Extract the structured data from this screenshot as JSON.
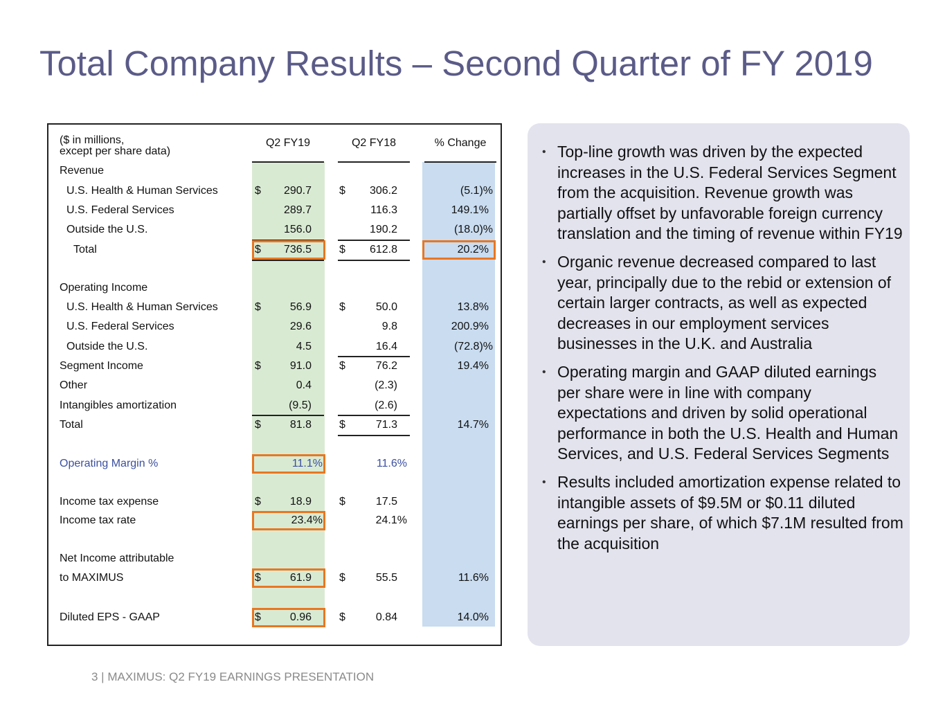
{
  "title": "Total Company Results – Second Quarter of FY 2019",
  "table": {
    "header": {
      "label_lines": [
        "($ in millions,",
        "except per share data)"
      ],
      "columns": [
        "Q2 FY19",
        "Q2 FY18",
        "% Change"
      ]
    },
    "rows": [
      {
        "label": "Revenue"
      },
      {
        "label": "U.S. Health & Human Services",
        "cur_sign": "$",
        "cur": "290.7",
        "prior_sign": "$",
        "prior": "306.2",
        "change": "(5.1)%"
      },
      {
        "label": "U.S. Federal Services",
        "cur": "289.7",
        "prior": "116.3",
        "change": "149.1%"
      },
      {
        "label": "Outside the U.S.",
        "cur": "156.0",
        "prior": "190.2",
        "change": "(18.0)%"
      },
      {
        "label": "Total",
        "cur_sign": "$",
        "cur": "736.5",
        "prior_sign": "$",
        "prior": "612.8",
        "change": "20.2%"
      },
      {
        "label": "Operating Income"
      },
      {
        "label": "U.S. Health & Human Services",
        "cur_sign": "$",
        "cur": "56.9",
        "prior_sign": "$",
        "prior": "50.0",
        "change": "13.8%"
      },
      {
        "label": "U.S. Federal Services",
        "cur": "29.6",
        "prior": "9.8",
        "change": "200.9%"
      },
      {
        "label": "Outside the U.S.",
        "cur": "4.5",
        "prior": "16.4",
        "change": "(72.8)%"
      },
      {
        "label": "Segment Income",
        "cur_sign": "$",
        "cur": "91.0",
        "prior_sign": "$",
        "prior": "76.2",
        "change": "19.4%"
      },
      {
        "label": "Other",
        "cur": "0.4",
        "prior": "(2.3)"
      },
      {
        "label": "Intangibles amortization",
        "cur": "(9.5)",
        "prior": "(2.6)"
      },
      {
        "label": "Total",
        "cur_sign": "$",
        "cur": "81.8",
        "prior_sign": "$",
        "prior": "71.3",
        "change": "14.7%"
      },
      {
        "label": "Operating Margin %",
        "cur": "11.1%",
        "prior": "11.6%"
      },
      {
        "label": "Income tax expense",
        "cur_sign": "$",
        "cur": "18.9",
        "prior_sign": "$",
        "prior": "17.5"
      },
      {
        "label": "Income tax rate",
        "cur": "23.4%",
        "prior": "24.1%"
      },
      {
        "label": "Net Income attributable"
      },
      {
        "label": "to MAXIMUS",
        "cur_sign": "$",
        "cur": "61.9",
        "prior_sign": "$",
        "prior": "55.5",
        "change": "11.6%"
      },
      {
        "label": "Diluted EPS - GAAP",
        "cur_sign": "$",
        "cur": "0.96",
        "prior_sign": "$",
        "prior": "0.84",
        "change": "14.0%"
      }
    ]
  },
  "bullets": [
    "Top-line growth was driven by the expected increases in the U.S. Federal Services Segment from the acquisition. Revenue growth was partially offset by unfavorable foreign currency translation and the timing of revenue within FY19",
    "Organic revenue decreased compared to last year, principally due to the rebid or extension of certain larger contracts, as well as expected decreases in our employment services businesses in the U.K. and Australia",
    "Operating margin and GAAP diluted earnings per share were in line with company expectations and driven by solid operational performance in both the U.S. Health and Human Services, and U.S. Federal Services Segments",
    "Results included amortization expense related to intangible assets of $9.5M or $0.11 diluted earnings per share, of which $7.1M resulted from the acquisition"
  ],
  "footer": "3 | MAXIMUS: Q2 FY19 EARNINGS PRESENTATION"
}
